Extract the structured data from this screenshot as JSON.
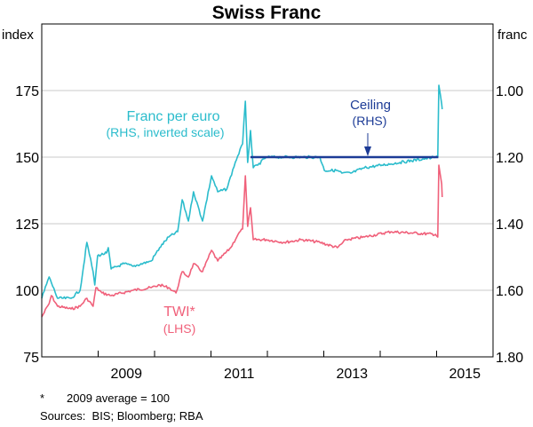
{
  "chart_data": {
    "type": "line",
    "title": "Swiss Franc",
    "left_axis": {
      "unit": "index",
      "range": [
        75,
        175
      ],
      "ticks": [
        "75",
        "100",
        "125",
        "150",
        "175"
      ]
    },
    "right_axis": {
      "unit": "franc",
      "range": [
        1.8,
        1.0
      ],
      "inverted": true,
      "ticks": [
        "1.80",
        "1.60",
        "1.40",
        "1.20",
        "1.00"
      ]
    },
    "x_axis": {
      "range": [
        2008,
        2016
      ],
      "tick_years": [
        2009,
        2010,
        2011,
        2012,
        2013,
        2014,
        2015
      ],
      "labels": [
        "2009",
        "2011",
        "2013",
        "2015"
      ]
    },
    "grid": true,
    "colors": {
      "franc": "#2bbccc",
      "twi": "#f0607a",
      "ceiling": "#1c3b96",
      "grid": "#c8c8c8"
    },
    "series": [
      {
        "name": "Franc per euro",
        "sublabel": "(RHS, inverted scale)",
        "axis": "right",
        "x": [
          2008.0,
          2008.13,
          2008.28,
          2008.52,
          2008.68,
          2008.8,
          2008.91,
          2008.94,
          2008.99,
          2009.15,
          2009.18,
          2009.23,
          2009.46,
          2009.62,
          2009.94,
          2010.09,
          2010.25,
          2010.41,
          2010.49,
          2010.6,
          2010.69,
          2010.85,
          2011.01,
          2011.12,
          2011.28,
          2011.43,
          2011.56,
          2011.61,
          2011.65,
          2011.7,
          2011.75,
          2011.83,
          2011.98,
          2012.3,
          2012.61,
          2012.93,
          2013.01,
          2013.24,
          2013.32,
          2013.48,
          2013.72,
          2014.03,
          2014.35,
          2014.98,
          2015.02,
          2015.04,
          2015.09,
          2015.1
        ],
        "y": [
          1.624,
          1.56,
          1.624,
          1.624,
          1.6,
          1.456,
          1.544,
          1.584,
          1.496,
          1.488,
          1.472,
          1.536,
          1.52,
          1.528,
          1.512,
          1.472,
          1.44,
          1.424,
          1.328,
          1.392,
          1.304,
          1.392,
          1.256,
          1.304,
          1.296,
          1.216,
          1.16,
          1.032,
          1.216,
          1.12,
          1.232,
          1.224,
          1.2,
          1.2,
          1.2,
          1.2,
          1.24,
          1.24,
          1.248,
          1.248,
          1.232,
          1.224,
          1.216,
          1.2,
          1.2,
          0.984,
          1.04,
          1.056
        ]
      },
      {
        "name": "TWI*",
        "sublabel": "(LHS)",
        "axis": "left",
        "x": [
          2008.0,
          2008.13,
          2008.17,
          2008.28,
          2008.52,
          2008.68,
          2008.8,
          2008.91,
          2008.96,
          2009.07,
          2009.23,
          2009.62,
          2009.94,
          2010.09,
          2010.25,
          2010.38,
          2010.49,
          2010.6,
          2010.69,
          2010.85,
          2011.01,
          2011.12,
          2011.35,
          2011.48,
          2011.56,
          2011.61,
          2011.65,
          2011.7,
          2011.75,
          2011.98,
          2012.3,
          2012.61,
          2012.93,
          2013.24,
          2013.4,
          2013.72,
          2014.19,
          2014.98,
          2015.02,
          2015.04,
          2015.09,
          2015.1
        ],
        "y": [
          90,
          95,
          98,
          94,
          93,
          94,
          97,
          94,
          101,
          99,
          98,
          100,
          101,
          102,
          101,
          99,
          107,
          105,
          110,
          107,
          115,
          111,
          116,
          121,
          123,
          143,
          124,
          131,
          119,
          119,
          118,
          119,
          118,
          116,
          119,
          120,
          122,
          121,
          120,
          147,
          140,
          135
        ]
      },
      {
        "name": "Ceiling",
        "sublabel": "(RHS)",
        "axis": "right",
        "x": [
          2011.7,
          2015.03
        ],
        "y": [
          1.2,
          1.2
        ]
      }
    ]
  },
  "footnotes": {
    "star": "*",
    "note": "2009 average = 100",
    "sources": "Sources:  BIS; Bloomberg; RBA"
  }
}
